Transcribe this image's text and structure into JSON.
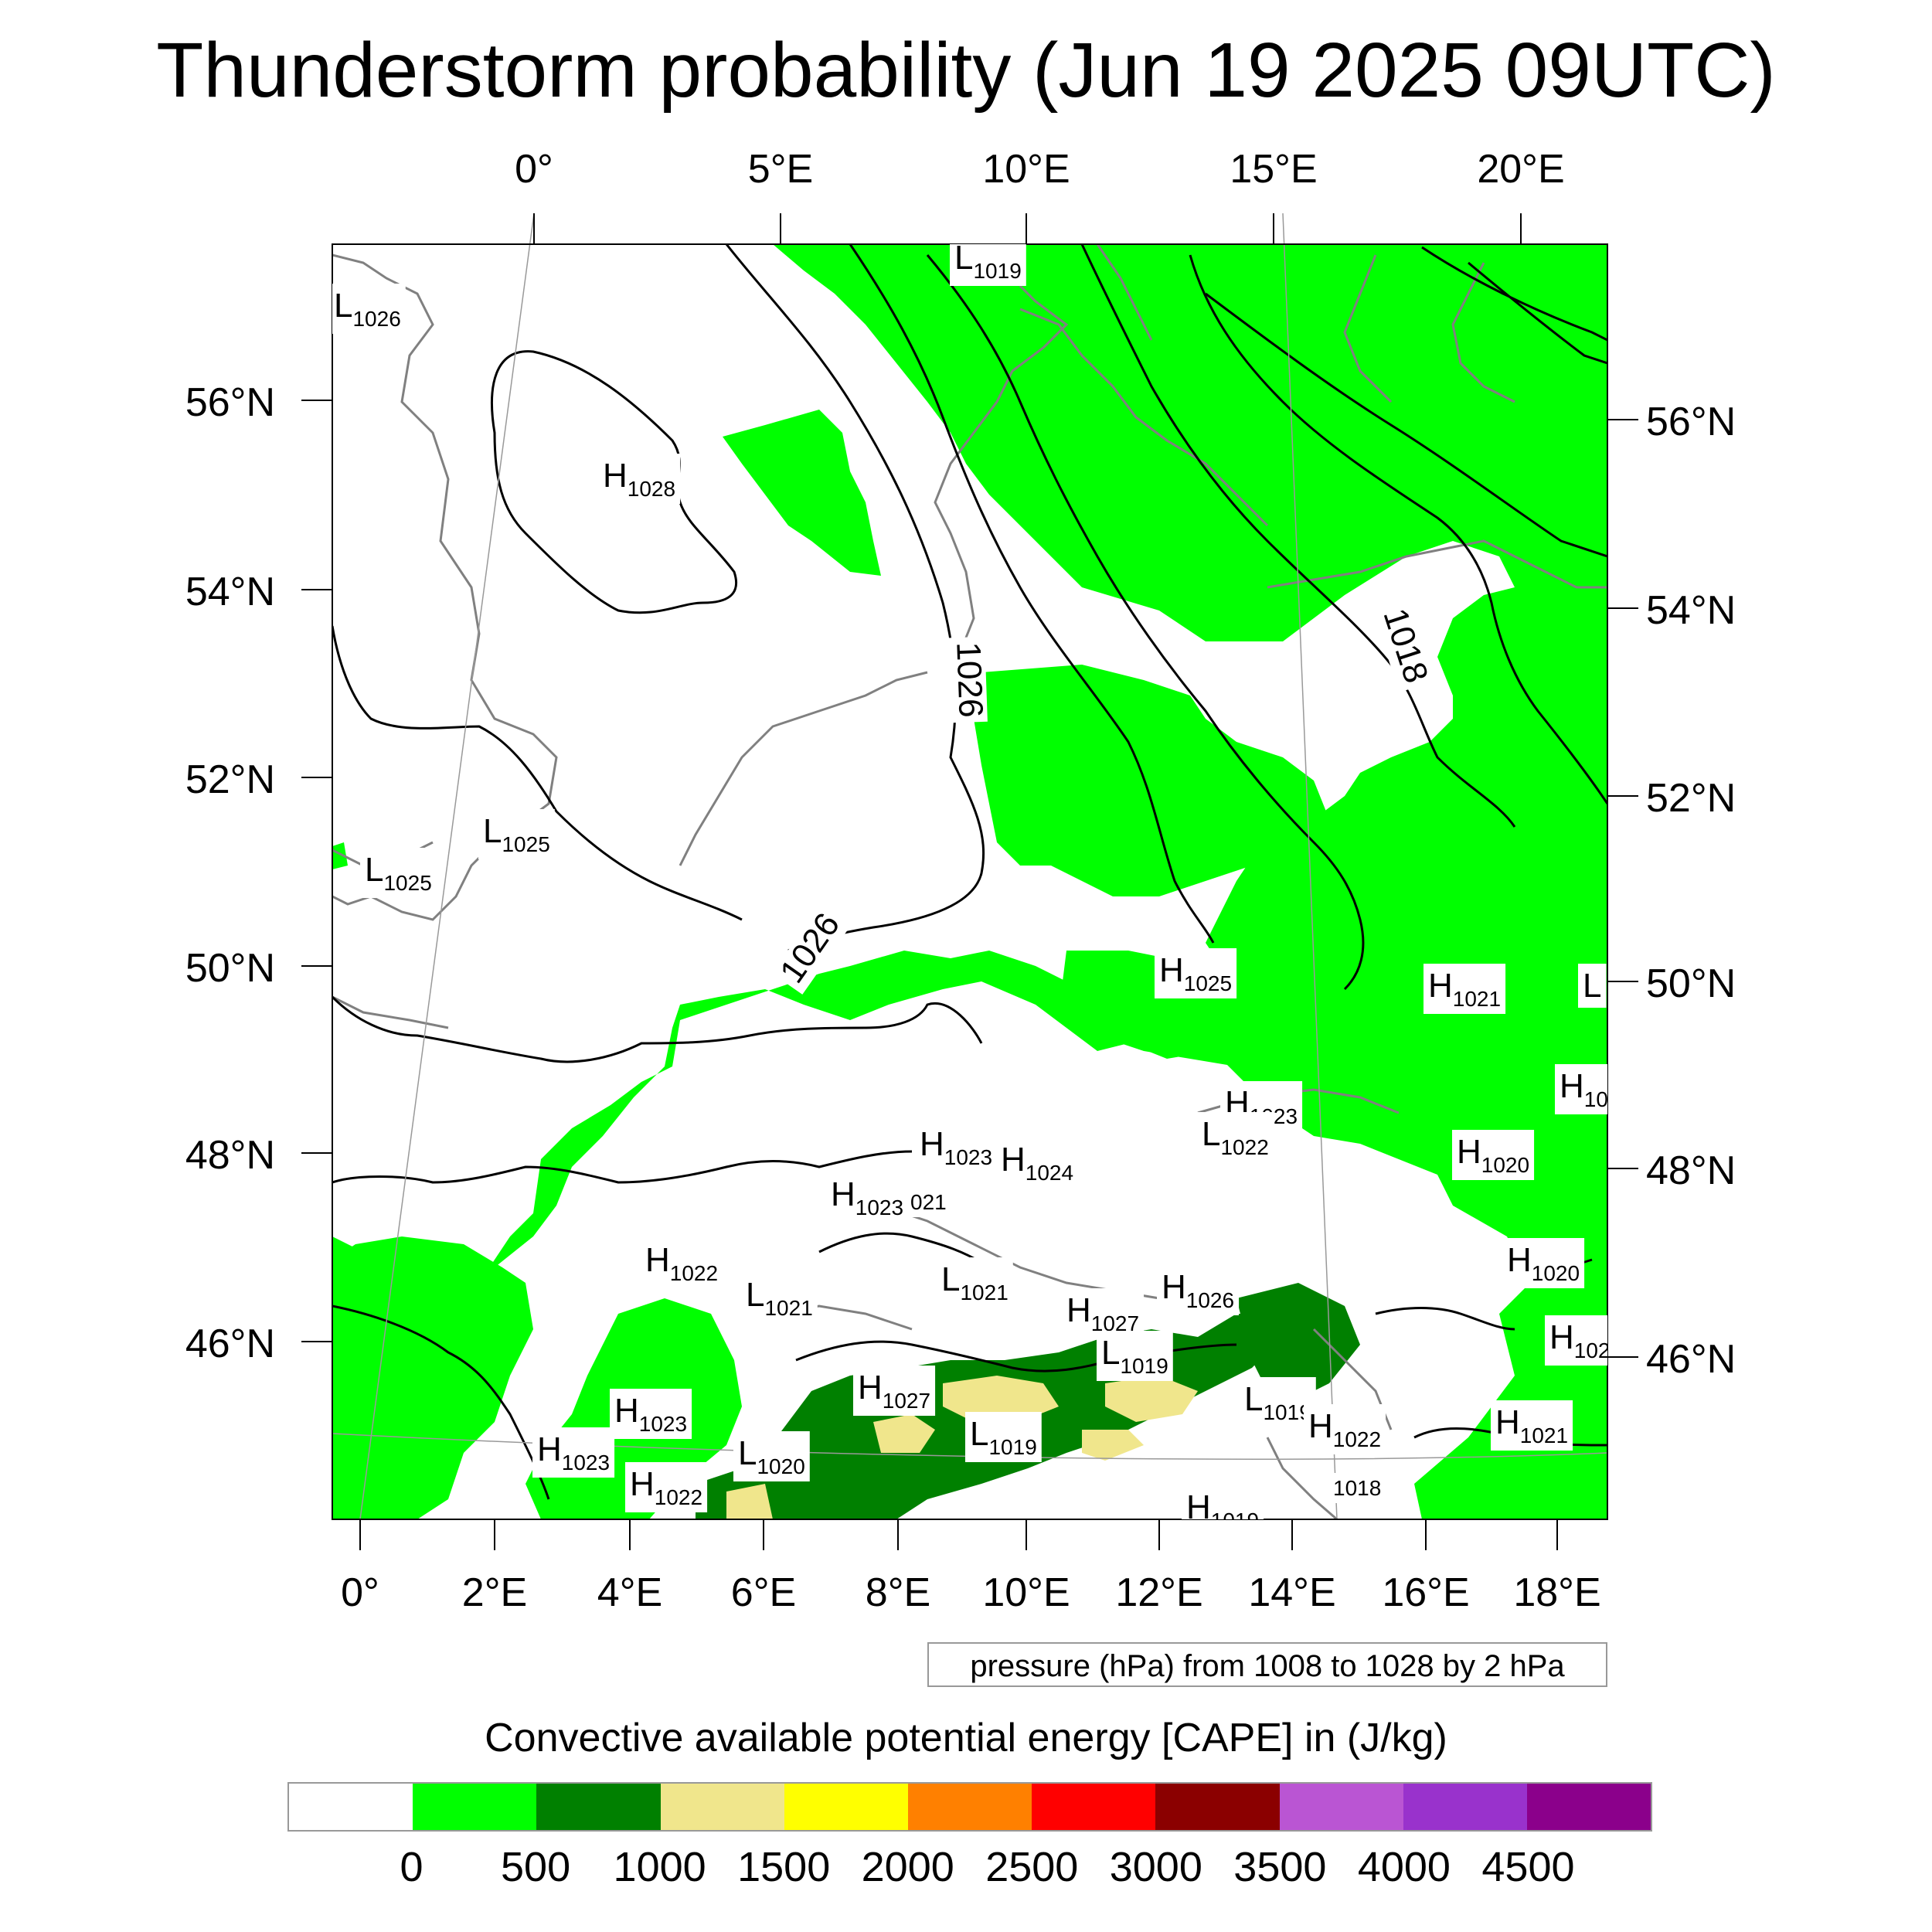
{
  "title": "Thunderstorm probability (Jun 19 2025 09UTC)",
  "pressure_info": "pressure (hPa) from 1008 to 1028 by 2 hPa",
  "colorbar": {
    "label": "Convective available potential energy [CAPE] in (J/kg)",
    "colors": [
      "#ffffff",
      "#00ff00",
      "#008000",
      "#f0e68c",
      "#ffff00",
      "#ff8000",
      "#ff0000",
      "#8b0000",
      "#ba55d3",
      "#9932cc",
      "#8b008b"
    ],
    "ticks": [
      "0",
      "500",
      "1000",
      "1500",
      "2000",
      "2500",
      "3000",
      "3500",
      "4000",
      "4500"
    ]
  },
  "axes": {
    "top_lon": [
      "0°",
      "5°E",
      "10°E",
      "15°E",
      "20°E"
    ],
    "bottom_lon": [
      "0°",
      "2°E",
      "4°E",
      "6°E",
      "8°E",
      "10°E",
      "12°E",
      "14°E",
      "16°E",
      "18°E"
    ],
    "left_lat": [
      "56°N",
      "54°N",
      "52°N",
      "50°N",
      "48°N",
      "46°N"
    ],
    "right_lat": [
      "56°N",
      "54°N",
      "52°N",
      "50°N",
      "48°N",
      "46°N"
    ]
  },
  "pressure_centers": [
    {
      "t": "L",
      "v": "1026"
    },
    {
      "t": "L",
      "v": "1019"
    },
    {
      "t": "H",
      "v": "1028"
    },
    {
      "t": "L",
      "v": "1025"
    },
    {
      "t": "L",
      "v": "1025"
    },
    {
      "t": "H",
      "v": "1025"
    },
    {
      "t": "H",
      "v": "1021"
    },
    {
      "t": "L",
      "v": ""
    },
    {
      "t": "H",
      "v": "1023"
    },
    {
      "t": "L",
      "v": "1022"
    },
    {
      "t": "H",
      "v": "10"
    },
    {
      "t": "H",
      "v": "1020"
    },
    {
      "t": "H",
      "v": "1023"
    },
    {
      "t": "H",
      "v": "1024"
    },
    {
      "t": "H",
      "v": "1023"
    },
    {
      "t": "",
      "v": "021"
    },
    {
      "t": "H",
      "v": "1022"
    },
    {
      "t": "L",
      "v": "1021"
    },
    {
      "t": "L",
      "v": "1021"
    },
    {
      "t": "H",
      "v": "1026"
    },
    {
      "t": "H",
      "v": "1027"
    },
    {
      "t": "L",
      "v": "1019"
    },
    {
      "t": "H",
      "v": "1020"
    },
    {
      "t": "H",
      "v": "102"
    },
    {
      "t": "H",
      "v": "1027"
    },
    {
      "t": "L",
      "v": "1019"
    },
    {
      "t": "L",
      "v": "1019"
    },
    {
      "t": "H",
      "v": "1022"
    },
    {
      "t": "H",
      "v": "1021"
    },
    {
      "t": "H",
      "v": "1023"
    },
    {
      "t": "H",
      "v": "1023"
    },
    {
      "t": "L",
      "v": "1020"
    },
    {
      "t": "H",
      "v": "1022"
    },
    {
      "t": "",
      "v": "1018"
    },
    {
      "t": "H",
      "v": "1019"
    }
  ],
  "isobar_labels": [
    "1026",
    "1026",
    "1018"
  ]
}
